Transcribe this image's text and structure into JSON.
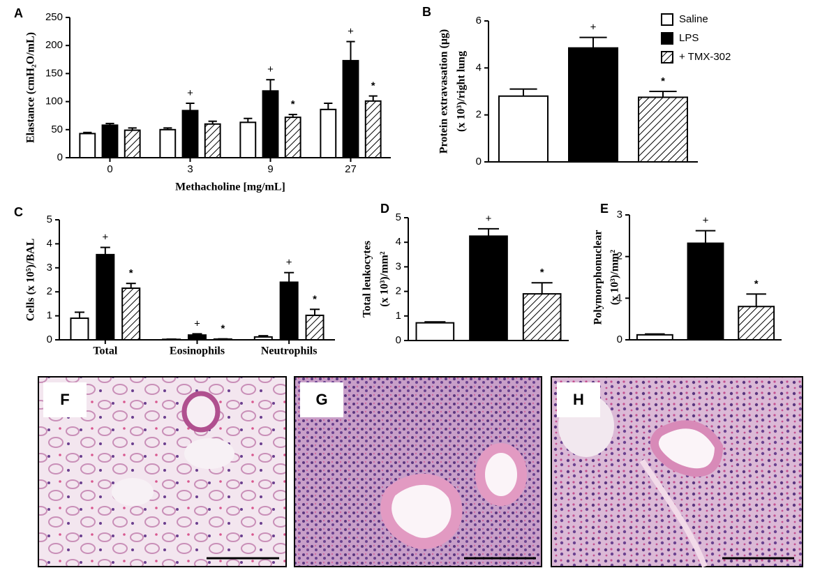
{
  "chart_data": [
    {
      "type": "bar",
      "panel": "A",
      "ylabel": [
        "Elastance (cmH₂O/mL)"
      ],
      "xlabel": "Methacholine [mg/mL]",
      "categories": [
        "0",
        "3",
        "9",
        "27"
      ],
      "ylim": [
        0,
        250
      ],
      "yticks": [
        0,
        50,
        100,
        150,
        200,
        250
      ],
      "series": [
        {
          "color": "#ffffff",
          "values": [
            43,
            50,
            63,
            86
          ],
          "errors": [
            2,
            3,
            7,
            11
          ],
          "annotations": [
            null,
            null,
            null,
            null
          ]
        },
        {
          "color": "#000000",
          "values": [
            58,
            84,
            119,
            173
          ],
          "errors": [
            3,
            13,
            20,
            34
          ],
          "annotations": [
            null,
            "+",
            "+",
            "+"
          ]
        },
        {
          "color": "#ffffff",
          "pattern": "hatch",
          "values": [
            49,
            60,
            72,
            101
          ],
          "errors": [
            4,
            5,
            5,
            9
          ],
          "annotations": [
            null,
            null,
            "*",
            "*"
          ]
        }
      ]
    },
    {
      "type": "bar",
      "panel": "B",
      "ylabel": [
        "Protein extravasation (μg)",
        "(x 10³)/right lung"
      ],
      "ylim": [
        0,
        6
      ],
      "yticks": [
        0,
        2,
        4,
        6
      ],
      "legend": "top-right",
      "series": [
        {
          "name": "Saline",
          "color": "#ffffff",
          "values": [
            2.8
          ],
          "errors": [
            0.3
          ],
          "annotations": [
            null
          ]
        },
        {
          "name": "LPS",
          "color": "#000000",
          "values": [
            4.85
          ],
          "errors": [
            0.45
          ],
          "annotations": [
            "+"
          ]
        },
        {
          "name": "+ TMX-302",
          "color": "#ffffff",
          "pattern": "hatch",
          "values": [
            2.75
          ],
          "errors": [
            0.25
          ],
          "annotations": [
            "*"
          ]
        }
      ]
    },
    {
      "type": "bar",
      "panel": "C",
      "ylabel": [
        "Cells (x 10⁵)/BAL"
      ],
      "categories": [
        "Total",
        "Eosinophils",
        "Neutrophils"
      ],
      "ylim": [
        0,
        5
      ],
      "yticks": [
        0,
        1,
        2,
        3,
        4,
        5
      ],
      "series": [
        {
          "color": "#ffffff",
          "values": [
            0.9,
            0.02,
            0.12
          ],
          "errors": [
            0.25,
            0.01,
            0.05
          ],
          "annotations": [
            null,
            null,
            null
          ]
        },
        {
          "color": "#000000",
          "values": [
            3.55,
            0.2,
            2.4
          ],
          "errors": [
            0.3,
            0.05,
            0.4
          ],
          "annotations": [
            "+",
            "+",
            "+"
          ]
        },
        {
          "color": "#ffffff",
          "pattern": "hatch",
          "values": [
            2.15,
            0.03,
            1.02
          ],
          "errors": [
            0.2,
            0.01,
            0.25
          ],
          "annotations": [
            "*",
            "*",
            "*"
          ]
        }
      ]
    },
    {
      "type": "bar",
      "panel": "D",
      "ylabel": [
        "Total leukocytes",
        "(x 10³)/mm²"
      ],
      "ylim": [
        0,
        5
      ],
      "yticks": [
        0,
        1,
        2,
        3,
        4,
        5
      ],
      "series": [
        {
          "color": "#ffffff",
          "values": [
            0.72
          ],
          "errors": [
            0.04
          ],
          "annotations": [
            null
          ]
        },
        {
          "color": "#000000",
          "values": [
            4.25
          ],
          "errors": [
            0.3
          ],
          "annotations": [
            "+"
          ]
        },
        {
          "color": "#ffffff",
          "pattern": "hatch",
          "values": [
            1.9
          ],
          "errors": [
            0.45
          ],
          "annotations": [
            "*"
          ]
        }
      ]
    },
    {
      "type": "bar",
      "panel": "E",
      "ylabel": [
        "Polymorphonuclear",
        "(x 10³)/mm²"
      ],
      "ylim": [
        0,
        3
      ],
      "yticks": [
        0,
        1,
        2,
        3
      ],
      "series": [
        {
          "color": "#ffffff",
          "values": [
            0.12
          ],
          "errors": [
            0.02
          ],
          "annotations": [
            null
          ]
        },
        {
          "color": "#000000",
          "values": [
            2.32
          ],
          "errors": [
            0.3
          ],
          "annotations": [
            "+"
          ]
        },
        {
          "color": "#ffffff",
          "pattern": "hatch",
          "values": [
            0.8
          ],
          "errors": [
            0.3
          ],
          "annotations": [
            "*"
          ]
        }
      ]
    }
  ],
  "images": [
    {
      "label": "F"
    },
    {
      "label": "G"
    },
    {
      "label": "H"
    }
  ]
}
